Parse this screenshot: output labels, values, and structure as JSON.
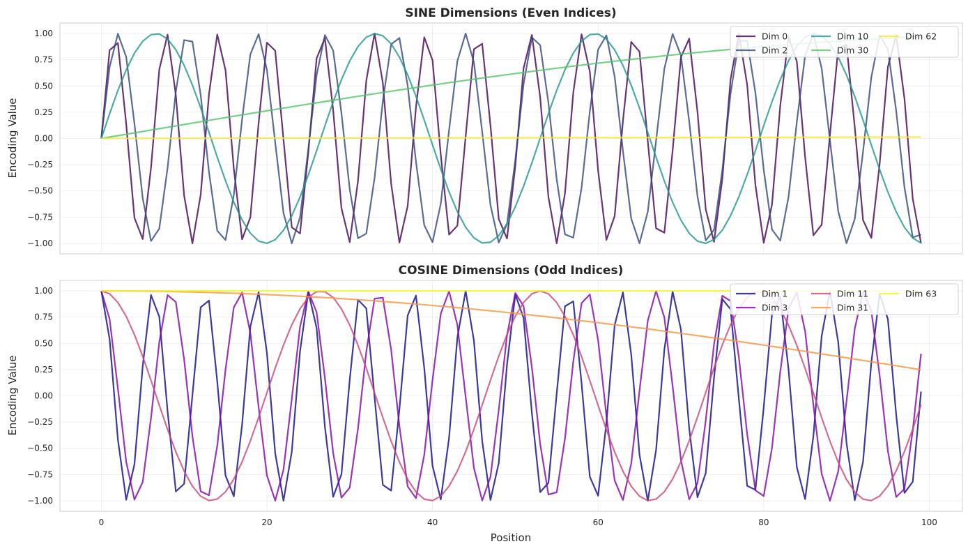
{
  "chart_data": [
    {
      "type": "line",
      "title": "SINE Dimensions (Even Indices)",
      "xlabel": "",
      "ylabel": "Encoding Value",
      "xlim": [
        -5,
        104
      ],
      "ylim": [
        -1.1,
        1.1
      ],
      "xticks": [
        0,
        20,
        40,
        60,
        80,
        100
      ],
      "show_xtick_labels": false,
      "yticks": [
        -1.0,
        -0.75,
        -0.5,
        -0.25,
        0.0,
        0.25,
        0.5,
        0.75,
        1.0
      ],
      "ytick_labels": [
        "−1.00",
        "−0.75",
        "−0.50",
        "−0.25",
        "0.00",
        "0.25",
        "0.50",
        "0.75",
        "1.00"
      ],
      "grid": true,
      "legend_position": "top-right",
      "x": {
        "start": 0,
        "end": 99,
        "step": 1
      },
      "series": [
        {
          "name": "Dim 0",
          "func": "sin",
          "frequency": 1.0,
          "color": "#440154"
        },
        {
          "name": "Dim 2",
          "func": "sin",
          "frequency": 0.7498942093324559,
          "color": "#31467a"
        },
        {
          "name": "Dim 10",
          "func": "sin",
          "frequency": 0.23713737056616552,
          "color": "#1f968b"
        },
        {
          "name": "Dim 30",
          "func": "sin",
          "frequency": 0.01333521432163324,
          "color": "#55c667"
        },
        {
          "name": "Dim 62",
          "func": "sin",
          "frequency": 0.00013335214321633242,
          "color": "#fde725"
        }
      ]
    },
    {
      "type": "line",
      "title": "COSINE Dimensions (Odd Indices)",
      "xlabel": "Position",
      "ylabel": "Encoding Value",
      "xlim": [
        -5,
        104
      ],
      "ylim": [
        -1.1,
        1.1
      ],
      "xticks": [
        0,
        20,
        40,
        60,
        80,
        100
      ],
      "show_xtick_labels": true,
      "xtick_labels": [
        "0",
        "20",
        "40",
        "60",
        "80",
        "100"
      ],
      "yticks": [
        -1.0,
        -0.75,
        -0.5,
        -0.25,
        0.0,
        0.25,
        0.5,
        0.75,
        1.0
      ],
      "ytick_labels": [
        "−1.00",
        "−0.75",
        "−0.50",
        "−0.25",
        "0.00",
        "0.25",
        "0.50",
        "0.75",
        "1.00"
      ],
      "grid": true,
      "legend_position": "top-right",
      "x": {
        "start": 0,
        "end": 99,
        "step": 1
      },
      "series": [
        {
          "name": "Dim 1",
          "func": "cos",
          "frequency": 1.0,
          "color": "#0d0887"
        },
        {
          "name": "Dim 3",
          "func": "cos",
          "frequency": 0.7498942093324559,
          "color": "#7e03a8"
        },
        {
          "name": "Dim 11",
          "func": "cos",
          "frequency": 0.23713737056616552,
          "color": "#cc4778"
        },
        {
          "name": "Dim 31",
          "func": "cos",
          "frequency": 0.01333521432163324,
          "color": "#f89540"
        },
        {
          "name": "Dim 63",
          "func": "cos",
          "frequency": 0.00013335214321633242,
          "color": "#f0f921"
        }
      ]
    }
  ]
}
